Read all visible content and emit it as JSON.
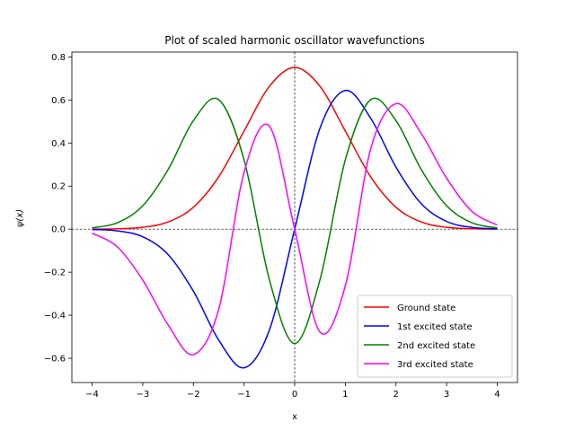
{
  "chart_data": {
    "type": "line",
    "title": "Plot of scaled harmonic oscillator wavefunctions",
    "xlabel": "x",
    "ylabel": "ψ(x)",
    "xlim": [
      -4.4,
      4.4
    ],
    "ylim": [
      -0.7125,
      0.8225
    ],
    "xticks": [
      -4,
      -3,
      -2,
      -1,
      0,
      1,
      2,
      3,
      4
    ],
    "xtick_labels": [
      "−4",
      "−3",
      "−2",
      "−1",
      "0",
      "1",
      "2",
      "3",
      "4"
    ],
    "yticks": [
      -0.6,
      -0.4,
      -0.2,
      0.0,
      0.2,
      0.4,
      0.6,
      0.8
    ],
    "ytick_labels": [
      "−0.6",
      "−0.4",
      "−0.2",
      "0.0",
      "0.2",
      "0.4",
      "0.6",
      "0.8"
    ],
    "grid": false,
    "reference_lines": [
      {
        "orientation": "horizontal",
        "value": 0,
        "style": "dashed"
      },
      {
        "orientation": "vertical",
        "value": 0,
        "style": "dashed"
      }
    ],
    "legend_position": "lower-right",
    "x": [
      -4.0,
      -3.5,
      -3.0,
      -2.5,
      -2.0,
      -1.5,
      -1.0,
      -0.5,
      0.0,
      0.5,
      1.0,
      1.5,
      2.0,
      2.5,
      3.0,
      3.5,
      4.0
    ],
    "series": [
      {
        "name": "Ground state",
        "color": "#ff0000",
        "values": [
          0.0003,
          0.0016,
          0.0084,
          0.0333,
          0.1019,
          0.243,
          0.4556,
          0.6631,
          0.7511,
          0.6631,
          0.4556,
          0.243,
          0.1019,
          0.0333,
          0.0084,
          0.0016,
          0.0003
        ]
      },
      {
        "name": "1st excited state",
        "color": "#0000ff",
        "values": [
          -0.0019,
          -0.0081,
          -0.0357,
          -0.1179,
          -0.2883,
          -0.5154,
          -0.6443,
          -0.4689,
          0.0,
          0.4689,
          0.6443,
          0.5154,
          0.2883,
          0.1179,
          0.0357,
          0.0081,
          0.0019
        ]
      },
      {
        "name": "2nd excited state",
        "color": "#008000",
        "values": [
          0.0057,
          0.0297,
          0.1087,
          0.2768,
          0.5042,
          0.6013,
          0.3221,
          -0.2345,
          -0.5311,
          -0.2345,
          0.3221,
          0.6013,
          0.5042,
          0.2768,
          0.1087,
          0.0297,
          0.0057
        ]
      },
      {
        "name": "3rd excited state",
        "color": "#ff00ff",
        "values": [
          -0.0189,
          -0.0827,
          -0.2366,
          -0.4442,
          -0.5828,
          -0.372,
          0.263,
          0.4786,
          0.0,
          -0.4786,
          -0.263,
          0.372,
          0.5828,
          0.4442,
          0.2366,
          0.0827,
          0.0189
        ]
      }
    ]
  }
}
